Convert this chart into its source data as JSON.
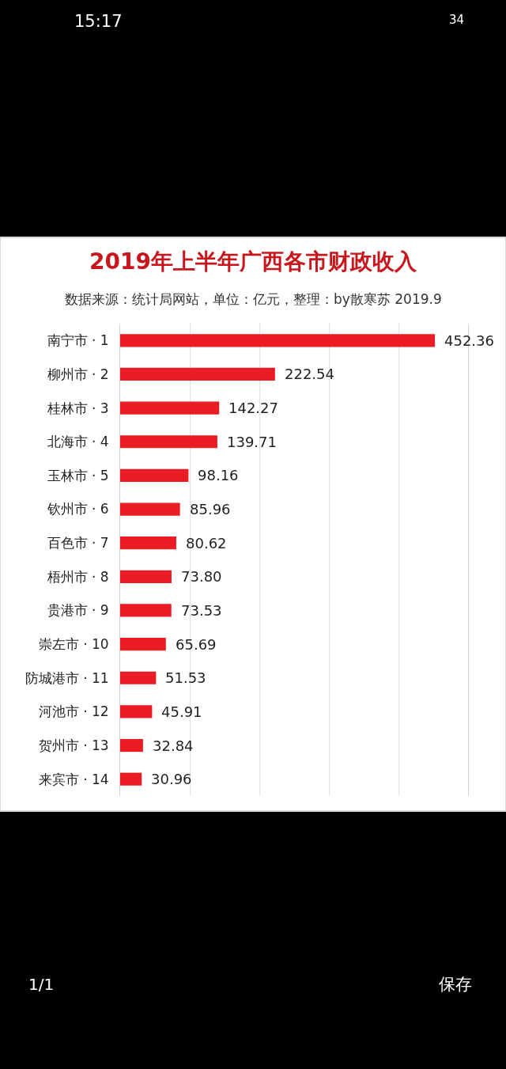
{
  "chart_data": {
    "type": "bar",
    "orientation": "horizontal",
    "title": "2019年上半年广西各市财政收入",
    "subtitle": "数据来源：统计局网站，单位：亿元，整理：by散寒苏 2019.9",
    "categories": [
      "南宁市 · 1",
      "柳州市 · 2",
      "桂林市 · 3",
      "北海市 · 4",
      "玉林市 · 5",
      "钦州市 · 6",
      "百色市 · 7",
      "梧州市 · 8",
      "贵港市 · 9",
      "崇左市 · 10",
      "防城港市 · 11",
      "河池市 · 12",
      "贺州市 · 13",
      "来宾市 · 14"
    ],
    "values": [
      452.36,
      222.54,
      142.27,
      139.71,
      98.16,
      85.96,
      80.62,
      73.8,
      73.53,
      65.69,
      51.53,
      45.91,
      32.84,
      30.96
    ],
    "value_labels": [
      "452.36",
      "222.54",
      "142.27",
      "139.71",
      "98.16",
      "85.96",
      "80.62",
      "73.80",
      "73.53",
      "65.69",
      "51.53",
      "45.91",
      "32.84",
      "30.96"
    ],
    "color": "#ec1c24",
    "xlim": [
      0,
      500
    ],
    "xticks": [
      {
        "value": 0,
        "label": null
      },
      {
        "value": 100,
        "label": null
      },
      {
        "value": 200,
        "label": null
      },
      {
        "value": 300,
        "label": null
      },
      {
        "value": 400,
        "label": null
      },
      {
        "value": 500,
        "label": null
      }
    ],
    "grid": "x",
    "tick_labels": "y",
    "annotations": [
      "15:17",
      "34",
      "1/1",
      "保存"
    ]
  }
}
